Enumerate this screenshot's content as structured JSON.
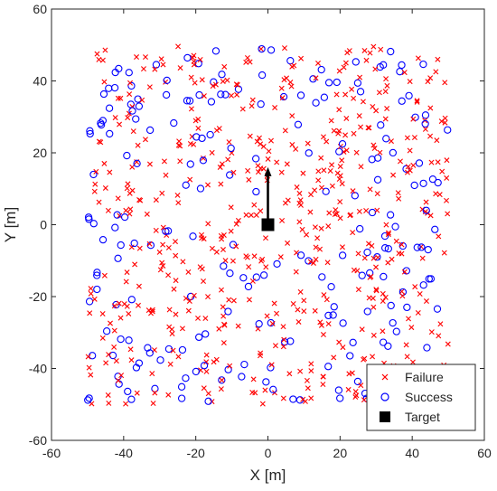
{
  "chart_data": {
    "type": "scatter",
    "title": "",
    "xlabel": "X [m]",
    "ylabel": "Y [m]",
    "xlim": [
      -60,
      60
    ],
    "ylim": [
      -60,
      60
    ],
    "xticks": [
      "-60",
      "-40",
      "-20",
      "0",
      "20",
      "40",
      "60"
    ],
    "yticks": [
      "-60",
      "-40",
      "-20",
      "0",
      "20",
      "40",
      "60"
    ],
    "grid": false,
    "legend_position": "bottom-right",
    "series": [
      {
        "name": "Failure",
        "marker": "x",
        "color": "#ff0000",
        "n_points": 560,
        "x_range": [
          -50,
          50
        ],
        "y_range": [
          -50,
          50
        ]
      },
      {
        "name": "Success",
        "marker": "circle",
        "color": "#0000ff",
        "n_points": 220,
        "x_range": [
          -50,
          50
        ],
        "y_range": [
          -50,
          50
        ]
      },
      {
        "name": "Target",
        "marker": "square",
        "color": "#000000",
        "points": [
          [
            0,
            0
          ]
        ]
      }
    ],
    "annotations": [
      {
        "type": "arrow",
        "from": [
          0,
          0
        ],
        "to": [
          0,
          16
        ],
        "color": "#000000"
      }
    ]
  }
}
